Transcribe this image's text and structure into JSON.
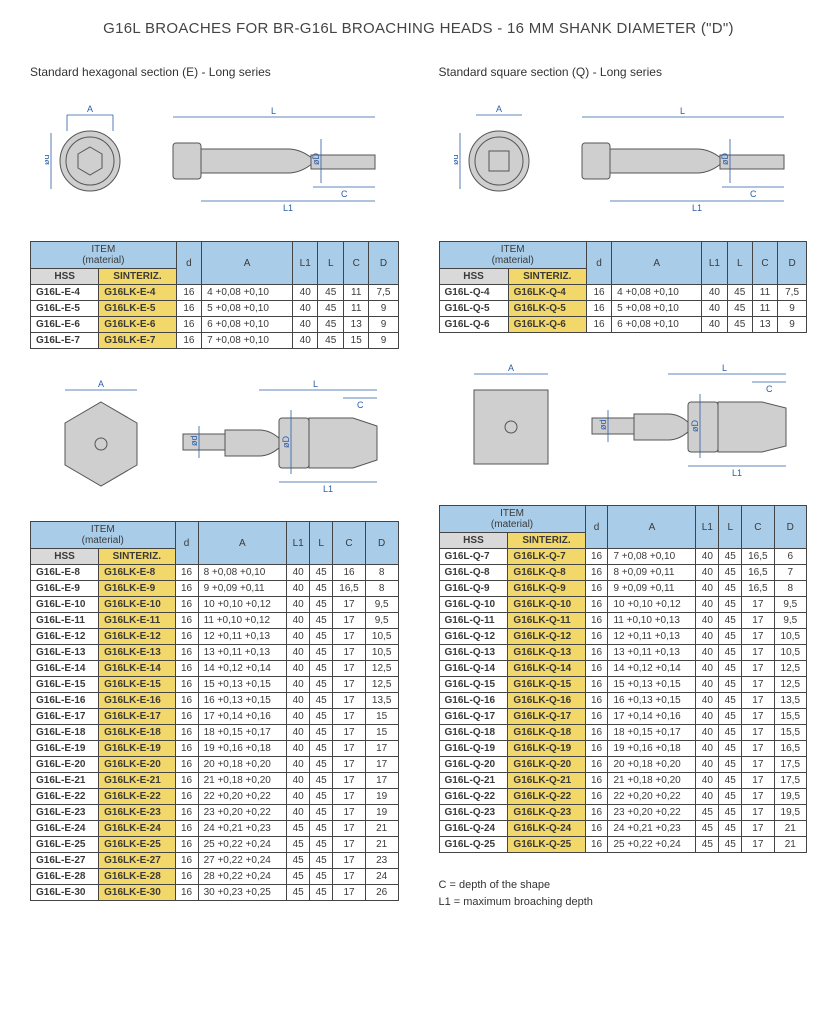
{
  "title": "G16L BROACHES FOR BR-G16L BROACHING HEADS - 16 MM SHANK DIAMETER (\"D\")",
  "left": {
    "subtitle": "Standard hexagonal section (E) - Long series",
    "headers": {
      "item": "ITEM",
      "material": "(material)",
      "hss": "HSS",
      "sint": "SINTERIZ.",
      "d": "d",
      "A": "A",
      "L1": "L1",
      "L": "L",
      "C": "C",
      "D": "D"
    },
    "table1": [
      {
        "hss": "G16L-E-4",
        "sint": "G16LK-E-4",
        "d": "16",
        "A": "4   +0,08 +0,10",
        "L1": "40",
        "L": "45",
        "C": "11",
        "D": "7,5"
      },
      {
        "hss": "G16L-E-5",
        "sint": "G16LK-E-5",
        "d": "16",
        "A": "5   +0,08 +0,10",
        "L1": "40",
        "L": "45",
        "C": "11",
        "D": "9"
      },
      {
        "hss": "G16L-E-6",
        "sint": "G16LK-E-6",
        "d": "16",
        "A": "6   +0,08 +0,10",
        "L1": "40",
        "L": "45",
        "C": "13",
        "D": "9"
      },
      {
        "hss": "G16L-E-7",
        "sint": "G16LK-E-7",
        "d": "16",
        "A": "7   +0,08 +0,10",
        "L1": "40",
        "L": "45",
        "C": "15",
        "D": "9"
      }
    ],
    "table2": [
      {
        "hss": "G16L-E-8",
        "sint": "G16LK-E-8",
        "d": "16",
        "A": "8   +0,08 +0,10",
        "L1": "40",
        "L": "45",
        "C": "16",
        "D": "8"
      },
      {
        "hss": "G16L-E-9",
        "sint": "G16LK-E-9",
        "d": "16",
        "A": "9   +0,09 +0,11",
        "L1": "40",
        "L": "45",
        "C": "16,5",
        "D": "8"
      },
      {
        "hss": "G16L-E-10",
        "sint": "G16LK-E-10",
        "d": "16",
        "A": "10  +0,10 +0,12",
        "L1": "40",
        "L": "45",
        "C": "17",
        "D": "9,5"
      },
      {
        "hss": "G16L-E-11",
        "sint": "G16LK-E-11",
        "d": "16",
        "A": "11  +0,10 +0,12",
        "L1": "40",
        "L": "45",
        "C": "17",
        "D": "9,5"
      },
      {
        "hss": "G16L-E-12",
        "sint": "G16LK-E-12",
        "d": "16",
        "A": "12  +0,11 +0,13",
        "L1": "40",
        "L": "45",
        "C": "17",
        "D": "10,5"
      },
      {
        "hss": "G16L-E-13",
        "sint": "G16LK-E-13",
        "d": "16",
        "A": "13  +0,11 +0,13",
        "L1": "40",
        "L": "45",
        "C": "17",
        "D": "10,5"
      },
      {
        "hss": "G16L-E-14",
        "sint": "G16LK-E-14",
        "d": "16",
        "A": "14  +0,12 +0,14",
        "L1": "40",
        "L": "45",
        "C": "17",
        "D": "12,5"
      },
      {
        "hss": "G16L-E-15",
        "sint": "G16LK-E-15",
        "d": "16",
        "A": "15  +0,13 +0,15",
        "L1": "40",
        "L": "45",
        "C": "17",
        "D": "12,5"
      },
      {
        "hss": "G16L-E-16",
        "sint": "G16LK-E-16",
        "d": "16",
        "A": "16  +0,13 +0,15",
        "L1": "40",
        "L": "45",
        "C": "17",
        "D": "13,5"
      },
      {
        "hss": "G16L-E-17",
        "sint": "G16LK-E-17",
        "d": "16",
        "A": "17  +0,14 +0,16",
        "L1": "40",
        "L": "45",
        "C": "17",
        "D": "15"
      },
      {
        "hss": "G16L-E-18",
        "sint": "G16LK-E-18",
        "d": "16",
        "A": "18  +0,15 +0,17",
        "L1": "40",
        "L": "45",
        "C": "17",
        "D": "15"
      },
      {
        "hss": "G16L-E-19",
        "sint": "G16LK-E-19",
        "d": "16",
        "A": "19  +0,16 +0,18",
        "L1": "40",
        "L": "45",
        "C": "17",
        "D": "17"
      },
      {
        "hss": "G16L-E-20",
        "sint": "G16LK-E-20",
        "d": "16",
        "A": "20  +0,18 +0,20",
        "L1": "40",
        "L": "45",
        "C": "17",
        "D": "17"
      },
      {
        "hss": "G16L-E-21",
        "sint": "G16LK-E-21",
        "d": "16",
        "A": "21  +0,18 +0,20",
        "L1": "40",
        "L": "45",
        "C": "17",
        "D": "17"
      },
      {
        "hss": "G16L-E-22",
        "sint": "G16LK-E-22",
        "d": "16",
        "A": "22  +0,20 +0,22",
        "L1": "40",
        "L": "45",
        "C": "17",
        "D": "19"
      },
      {
        "hss": "G16L-E-23",
        "sint": "G16LK-E-23",
        "d": "16",
        "A": "23  +0,20 +0,22",
        "L1": "40",
        "L": "45",
        "C": "17",
        "D": "19"
      },
      {
        "hss": "G16L-E-24",
        "sint": "G16LK-E-24",
        "d": "16",
        "A": "24  +0,21 +0,23",
        "L1": "45",
        "L": "45",
        "C": "17",
        "D": "21"
      },
      {
        "hss": "G16L-E-25",
        "sint": "G16LK-E-25",
        "d": "16",
        "A": "25  +0,22 +0,24",
        "L1": "45",
        "L": "45",
        "C": "17",
        "D": "21"
      },
      {
        "hss": "G16L-E-27",
        "sint": "G16LK-E-27",
        "d": "16",
        "A": "27  +0,22 +0,24",
        "L1": "45",
        "L": "45",
        "C": "17",
        "D": "23"
      },
      {
        "hss": "G16L-E-28",
        "sint": "G16LK-E-28",
        "d": "16",
        "A": "28  +0,22 +0,24",
        "L1": "45",
        "L": "45",
        "C": "17",
        "D": "24"
      },
      {
        "hss": "G16L-E-30",
        "sint": "G16LK-E-30",
        "d": "16",
        "A": "30  +0,23 +0,25",
        "L1": "45",
        "L": "45",
        "C": "17",
        "D": "26"
      }
    ]
  },
  "right": {
    "subtitle": "Standard square section (Q) - Long series",
    "headers": {
      "item": "ITEM",
      "material": "(material)",
      "hss": "HSS",
      "sint": "SINTERIZ.",
      "d": "d",
      "A": "A",
      "L1": "L1",
      "L": "L",
      "C": "C",
      "D": "D"
    },
    "table1": [
      {
        "hss": "G16L-Q-4",
        "sint": "G16LK-Q-4",
        "d": "16",
        "A": "4   +0,08 +0,10",
        "L1": "40",
        "L": "45",
        "C": "11",
        "D": "7,5"
      },
      {
        "hss": "G16L-Q-5",
        "sint": "G16LK-Q-5",
        "d": "16",
        "A": "5   +0,08 +0,10",
        "L1": "40",
        "L": "45",
        "C": "11",
        "D": "9"
      },
      {
        "hss": "G16L-Q-6",
        "sint": "G16LK-Q-6",
        "d": "16",
        "A": "6   +0,08 +0,10",
        "L1": "40",
        "L": "45",
        "C": "13",
        "D": "9"
      }
    ],
    "table2": [
      {
        "hss": "G16L-Q-7",
        "sint": "G16LK-Q-7",
        "d": "16",
        "A": "7   +0,08 +0,10",
        "L1": "40",
        "L": "45",
        "C": "16,5",
        "D": "6"
      },
      {
        "hss": "G16L-Q-8",
        "sint": "G16LK-Q-8",
        "d": "16",
        "A": "8   +0,09 +0,11",
        "L1": "40",
        "L": "45",
        "C": "16,5",
        "D": "7"
      },
      {
        "hss": "G16L-Q-9",
        "sint": "G16LK-Q-9",
        "d": "16",
        "A": "9   +0,09 +0,11",
        "L1": "40",
        "L": "45",
        "C": "16,5",
        "D": "8"
      },
      {
        "hss": "G16L-Q-10",
        "sint": "G16LK-Q-10",
        "d": "16",
        "A": "10  +0,10 +0,12",
        "L1": "40",
        "L": "45",
        "C": "17",
        "D": "9,5"
      },
      {
        "hss": "G16L-Q-11",
        "sint": "G16LK-Q-11",
        "d": "16",
        "A": "11  +0,10 +0,13",
        "L1": "40",
        "L": "45",
        "C": "17",
        "D": "9,5"
      },
      {
        "hss": "G16L-Q-12",
        "sint": "G16LK-Q-12",
        "d": "16",
        "A": "12  +0,11 +0,13",
        "L1": "40",
        "L": "45",
        "C": "17",
        "D": "10,5"
      },
      {
        "hss": "G16L-Q-13",
        "sint": "G16LK-Q-13",
        "d": "16",
        "A": "13  +0,11 +0,13",
        "L1": "40",
        "L": "45",
        "C": "17",
        "D": "10,5"
      },
      {
        "hss": "G16L-Q-14",
        "sint": "G16LK-Q-14",
        "d": "16",
        "A": "14  +0,12 +0,14",
        "L1": "40",
        "L": "45",
        "C": "17",
        "D": "12,5"
      },
      {
        "hss": "G16L-Q-15",
        "sint": "G16LK-Q-15",
        "d": "16",
        "A": "15  +0,13 +0,15",
        "L1": "40",
        "L": "45",
        "C": "17",
        "D": "12,5"
      },
      {
        "hss": "G16L-Q-16",
        "sint": "G16LK-Q-16",
        "d": "16",
        "A": "16  +0,13 +0,15",
        "L1": "40",
        "L": "45",
        "C": "17",
        "D": "13,5"
      },
      {
        "hss": "G16L-Q-17",
        "sint": "G16LK-Q-17",
        "d": "16",
        "A": "17  +0,14 +0,16",
        "L1": "40",
        "L": "45",
        "C": "17",
        "D": "15,5"
      },
      {
        "hss": "G16L-Q-18",
        "sint": "G16LK-Q-18",
        "d": "16",
        "A": "18  +0,15 +0,17",
        "L1": "40",
        "L": "45",
        "C": "17",
        "D": "15,5"
      },
      {
        "hss": "G16L-Q-19",
        "sint": "G16LK-Q-19",
        "d": "16",
        "A": "19  +0,16 +0,18",
        "L1": "40",
        "L": "45",
        "C": "17",
        "D": "16,5"
      },
      {
        "hss": "G16L-Q-20",
        "sint": "G16LK-Q-20",
        "d": "16",
        "A": "20  +0,18 +0,20",
        "L1": "40",
        "L": "45",
        "C": "17",
        "D": "17,5"
      },
      {
        "hss": "G16L-Q-21",
        "sint": "G16LK-Q-21",
        "d": "16",
        "A": "21  +0,18 +0,20",
        "L1": "40",
        "L": "45",
        "C": "17",
        "D": "17,5"
      },
      {
        "hss": "G16L-Q-22",
        "sint": "G16LK-Q-22",
        "d": "16",
        "A": "22  +0,20 +0,22",
        "L1": "40",
        "L": "45",
        "C": "17",
        "D": "19,5"
      },
      {
        "hss": "G16L-Q-23",
        "sint": "G16LK-Q-23",
        "d": "16",
        "A": "23  +0,20 +0,22",
        "L1": "45",
        "L": "45",
        "C": "17",
        "D": "19,5"
      },
      {
        "hss": "G16L-Q-24",
        "sint": "G16LK-Q-24",
        "d": "16",
        "A": "24  +0,21 +0,23",
        "L1": "45",
        "L": "45",
        "C": "17",
        "D": "21"
      },
      {
        "hss": "G16L-Q-25",
        "sint": "G16LK-Q-25",
        "d": "16",
        "A": "25  +0,22 +0,24",
        "L1": "45",
        "L": "45",
        "C": "17",
        "D": "21"
      }
    ]
  },
  "legend": {
    "c": "C = depth of the shape",
    "l1": "L1 = maximum broaching depth"
  },
  "colors": {
    "header_bg": "#a9cde8",
    "hss_bg": "#d9d9d9",
    "sint_bg": "#f2d86a",
    "border": "#444444",
    "dim_line": "#2a5ca8",
    "broach_fill": "#cfcfcf"
  }
}
